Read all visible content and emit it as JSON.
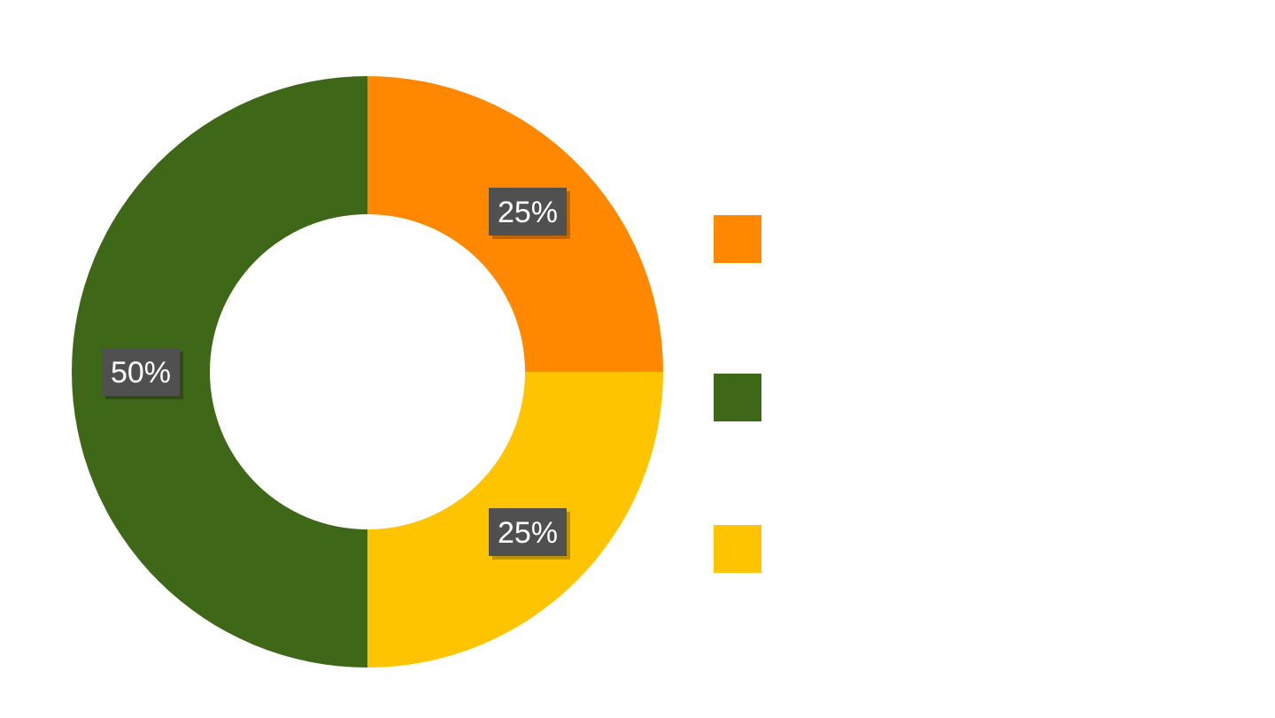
{
  "chart_data": {
    "type": "pie",
    "donut": true,
    "series": [
      {
        "value": 25,
        "color": "#FF8800",
        "label": "25%"
      },
      {
        "value": 25,
        "color": "#FFC400",
        "label": "25%"
      },
      {
        "value": 50,
        "color": "#3E6817",
        "label": "50%"
      }
    ],
    "legend_position": "right",
    "label_box_color": "#505050",
    "label_text_color": "#FFFFFF"
  }
}
